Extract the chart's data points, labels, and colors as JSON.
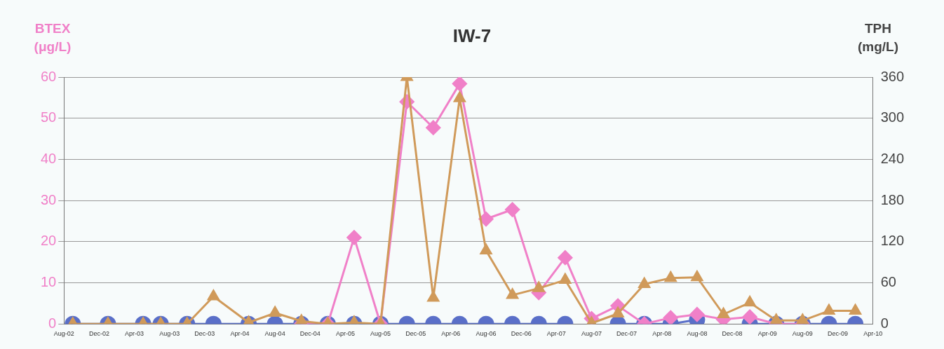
{
  "chart_data": {
    "type": "line",
    "title": "IW-7",
    "ylabel": "BTEX (μg/L)",
    "y2label": "TPH (mg/L)",
    "x": [
      "2002-09",
      "2003-01",
      "2003-05",
      "2003-07",
      "2003-10",
      "2004-01",
      "2004-05",
      "2004-08",
      "2004-11",
      "2005-02",
      "2005-05",
      "2005-08",
      "2005-11",
      "2006-02",
      "2006-05",
      "2006-08",
      "2006-11",
      "2007-02",
      "2007-05",
      "2007-08",
      "2007-11",
      "2008-02",
      "2008-05",
      "2008-08",
      "2008-11",
      "2009-02",
      "2009-05",
      "2009-08",
      "2009-11",
      "2010-02"
    ],
    "series": [
      {
        "name": null,
        "color": "#5a6fc8",
        "marker": "circle",
        "values": [
          0,
          0,
          0,
          0,
          0,
          0,
          0,
          0,
          0,
          0,
          0,
          0,
          0,
          0,
          0,
          0,
          0,
          0,
          0,
          null,
          0,
          0,
          0,
          1,
          null,
          0,
          0,
          0,
          0,
          0
        ]
      },
      {
        "name": null,
        "color": "#f080c8",
        "marker": "diamond",
        "values": [
          null,
          null,
          null,
          null,
          null,
          null,
          null,
          null,
          0,
          0,
          21,
          0,
          54,
          47.7,
          58.4,
          25.5,
          27.8,
          7.6,
          16.1,
          1.3,
          4.4,
          0,
          1.5,
          2.3,
          1.1,
          1.7,
          0,
          0,
          null,
          null
        ]
      },
      {
        "name": null,
        "color": "#d09a5a",
        "marker": "triangle",
        "axis": "y2",
        "values": [
          0,
          0,
          0,
          0,
          0,
          40,
          2,
          16,
          4,
          0,
          2,
          0,
          360,
          38,
          329,
          107,
          42,
          52,
          64,
          1,
          15,
          58,
          67,
          68,
          14,
          31,
          5,
          5,
          19,
          19
        ]
      }
    ],
    "xlim": [
      "2002-08",
      "2010-04"
    ],
    "xticks": [
      {
        "value": "2002-08",
        "label": "Aug-02"
      },
      {
        "value": "2002-12",
        "label": "Dec-02"
      },
      {
        "value": "2003-04",
        "label": "Apr-03"
      },
      {
        "value": "2003-08",
        "label": "Aug-03"
      },
      {
        "value": "2003-12",
        "label": "Dec-03"
      },
      {
        "value": "2004-04",
        "label": "Apr-04"
      },
      {
        "value": "2004-08",
        "label": "Aug-04"
      },
      {
        "value": "2004-12",
        "label": "Dec-04"
      },
      {
        "value": "2005-04",
        "label": "Apr-05"
      },
      {
        "value": "2005-08",
        "label": "Aug-05"
      },
      {
        "value": "2005-12",
        "label": "Dec-05"
      },
      {
        "value": "2006-04",
        "label": "Apr-06"
      },
      {
        "value": "2006-08",
        "label": "Aug-06"
      },
      {
        "value": "2006-12",
        "label": "Dec-06"
      },
      {
        "value": "2007-04",
        "label": "Apr-07"
      },
      {
        "value": "2007-08",
        "label": "Aug-07"
      },
      {
        "value": "2007-12",
        "label": "Dec-07"
      },
      {
        "value": "2008-04",
        "label": "Apr-08"
      },
      {
        "value": "2008-08",
        "label": "Aug-08"
      },
      {
        "value": "2008-12",
        "label": "Dec-08"
      },
      {
        "value": "2009-04",
        "label": "Apr-09"
      },
      {
        "value": "2009-08",
        "label": "Aug-09"
      },
      {
        "value": "2009-12",
        "label": "Dec-09"
      },
      {
        "value": "2010-04",
        "label": "Apr-10"
      }
    ],
    "ylim": [
      0,
      60
    ],
    "yticks": [
      0,
      10,
      20,
      30,
      40,
      50,
      60
    ],
    "y2lim": [
      0,
      360
    ],
    "y2ticks": [
      0,
      60,
      120,
      180,
      240,
      300,
      360
    ],
    "grid": "y",
    "legend": false,
    "line_style": "solid"
  }
}
